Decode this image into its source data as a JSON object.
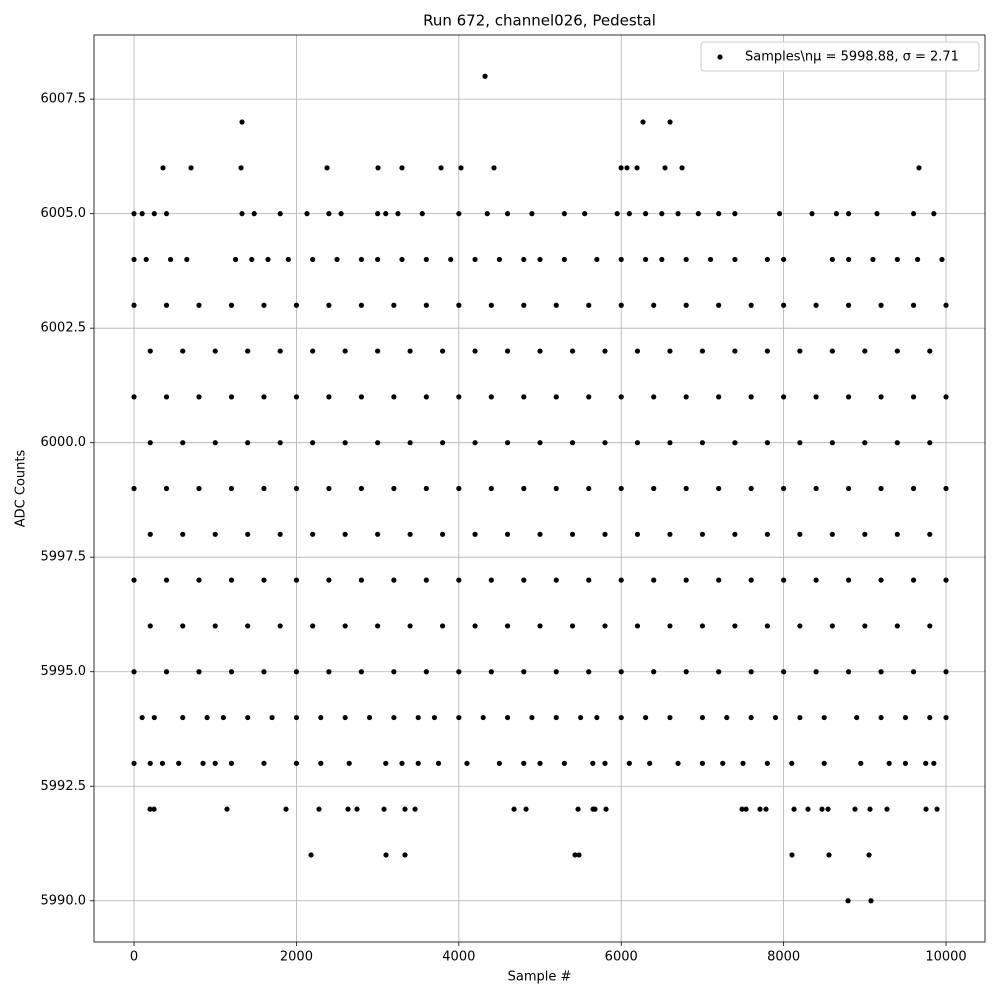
{
  "chart_data": {
    "type": "scatter",
    "title": "Run 672, channel026, Pedestal",
    "xlabel": "Sample #",
    "ylabel": "ADC Counts",
    "xlim": [
      -493,
      10480
    ],
    "ylim": [
      5989.1,
      6008.9
    ],
    "xticks": [
      0,
      2000,
      4000,
      6000,
      8000,
      10000
    ],
    "yticks": [
      {
        "value": 5990,
        "label": "5990.0"
      },
      5992.5,
      {
        "value": 5995,
        "label": "5995.0"
      },
      5997.5,
      {
        "value": 6000,
        "label": "6000.0"
      },
      6002.5,
      {
        "value": 6005,
        "label": "6005.0"
      },
      6007.5
    ],
    "grid": true,
    "legend": "upper right",
    "series": [
      {
        "name": "Samples\\nμ = 5998.88, σ = 2.71",
        "color": "#000000",
        "x": [
          4323,
          1330,
          6268,
          6601,
          357,
          702,
          1318,
          2377,
          3005,
          3300,
          3781,
          4027,
          4433,
          5998,
          6071,
          6195,
          6539,
          6749,
          9667,
          0,
          100,
          250,
          400,
          1330,
          1480,
          1800,
          2130,
          2400,
          2550,
          3000,
          3100,
          3250,
          3550,
          4000,
          4350,
          4600,
          4900,
          5300,
          5550,
          5950,
          6100,
          6300,
          6500,
          6700,
          6950,
          7200,
          7400,
          7950,
          8350,
          8650,
          8800,
          9150,
          9600,
          9850,
          0,
          150,
          450,
          650,
          1250,
          1450,
          1650,
          1900,
          2200,
          2500,
          2800,
          3000,
          3300,
          3600,
          3900,
          4200,
          4500,
          4800,
          5000,
          5300,
          5700,
          6000,
          6300,
          6500,
          6800,
          7100,
          7400,
          7800,
          8000,
          8600,
          8800,
          9100,
          9400,
          9650,
          9950,
          0,
          400,
          800,
          1200,
          1600,
          2000,
          2400,
          2800,
          3200,
          3600,
          4000,
          4400,
          4800,
          5200,
          5600,
          6000,
          6400,
          6800,
          7200,
          7600,
          8000,
          8400,
          8800,
          9200,
          9600,
          10000,
          200,
          600,
          1000,
          1400,
          1800,
          2200,
          2600,
          3000,
          3400,
          3800,
          4200,
          4600,
          5000,
          5400,
          5800,
          6200,
          6600,
          7000,
          7400,
          7800,
          8200,
          8600,
          9000,
          9400,
          9800,
          0,
          400,
          800,
          1200,
          1600,
          2000,
          2400,
          2800,
          3200,
          3600,
          4000,
          4400,
          4800,
          5200,
          5600,
          6000,
          6400,
          6800,
          7200,
          7600,
          8000,
          8400,
          8800,
          9200,
          9600,
          10000,
          200,
          600,
          1000,
          1400,
          1800,
          2200,
          2600,
          3000,
          3400,
          3800,
          4200,
          4600,
          5000,
          5400,
          5800,
          6200,
          6600,
          7000,
          7400,
          7800,
          8200,
          8600,
          9000,
          9400,
          9800,
          0,
          400,
          800,
          1200,
          1600,
          2000,
          2400,
          2800,
          3200,
          3600,
          4000,
          4400,
          4800,
          5200,
          5600,
          6000,
          6400,
          6800,
          7200,
          7600,
          8000,
          8400,
          8800,
          9200,
          9600,
          10000,
          200,
          600,
          1000,
          1400,
          1800,
          2200,
          2600,
          3000,
          3400,
          3800,
          4200,
          4600,
          5000,
          5400,
          5800,
          6200,
          6600,
          7000,
          7400,
          7800,
          8200,
          8600,
          9000,
          9400,
          9800,
          0,
          400,
          800,
          1200,
          1600,
          2000,
          2400,
          2800,
          3200,
          3600,
          4000,
          4400,
          4800,
          5200,
          5600,
          6000,
          6400,
          6800,
          7200,
          7600,
          8000,
          8400,
          8800,
          9200,
          9600,
          10000,
          200,
          600,
          1000,
          1400,
          1800,
          2200,
          2600,
          3000,
          3400,
          3800,
          4200,
          4600,
          5000,
          5400,
          5800,
          6200,
          6600,
          7000,
          7400,
          7800,
          8200,
          8600,
          9000,
          9400,
          9800,
          0,
          400,
          800,
          1200,
          1600,
          2000,
          2400,
          2800,
          3200,
          3600,
          4000,
          4400,
          4800,
          5200,
          5600,
          6000,
          6400,
          6800,
          7200,
          7600,
          8000,
          8400,
          8800,
          9200,
          9600,
          10000,
          100,
          250,
          600,
          900,
          1100,
          1400,
          1700,
          2000,
          2300,
          2600,
          2900,
          3200,
          3500,
          3700,
          4000,
          4300,
          4600,
          4900,
          5200,
          5500,
          5700,
          6000,
          6300,
          6600,
          7000,
          7300,
          7600,
          7900,
          8200,
          8500,
          8900,
          9200,
          9500,
          9800,
          10000,
          0,
          200,
          350,
          550,
          850,
          1000,
          1200,
          1600,
          2000,
          2300,
          2650,
          3100,
          3300,
          3500,
          3750,
          4100,
          4500,
          4800,
          5000,
          5300,
          5650,
          5800,
          6100,
          6350,
          6700,
          7000,
          7250,
          7500,
          7800,
          8100,
          8500,
          8950,
          9300,
          9500,
          9750,
          9850,
          197,
          246,
          1145,
          1872,
          2278,
          2635,
          2746,
          3079,
          3337,
          3461,
          4680,
          4828,
          5468,
          5653,
          5677,
          5813,
          7488,
          7537,
          7709,
          7783,
          8128,
          8300,
          8473,
          8547,
          8879,
          9064,
          9273,
          9754,
          9889,
          2180,
          3103,
          3337,
          5431,
          5480,
          8103,
          8559,
          9052,
          8793,
          9076
        ],
        "values": [
          6008,
          6007,
          6007,
          6007,
          6006,
          6006,
          6006,
          6006,
          6006,
          6006,
          6006,
          6006,
          6006,
          6006,
          6006,
          6006,
          6006,
          6006,
          6006,
          6005,
          6005,
          6005,
          6005,
          6005,
          6005,
          6005,
          6005,
          6005,
          6005,
          6005,
          6005,
          6005,
          6005,
          6005,
          6005,
          6005,
          6005,
          6005,
          6005,
          6005,
          6005,
          6005,
          6005,
          6005,
          6005,
          6005,
          6005,
          6005,
          6005,
          6005,
          6005,
          6005,
          6005,
          6005,
          6004,
          6004,
          6004,
          6004,
          6004,
          6004,
          6004,
          6004,
          6004,
          6004,
          6004,
          6004,
          6004,
          6004,
          6004,
          6004,
          6004,
          6004,
          6004,
          6004,
          6004,
          6004,
          6004,
          6004,
          6004,
          6004,
          6004,
          6004,
          6004,
          6004,
          6004,
          6004,
          6004,
          6004,
          6004,
          6003,
          6003,
          6003,
          6003,
          6003,
          6003,
          6003,
          6003,
          6003,
          6003,
          6003,
          6003,
          6003,
          6003,
          6003,
          6003,
          6003,
          6003,
          6003,
          6003,
          6003,
          6003,
          6003,
          6003,
          6003,
          6003,
          6002,
          6002,
          6002,
          6002,
          6002,
          6002,
          6002,
          6002,
          6002,
          6002,
          6002,
          6002,
          6002,
          6002,
          6002,
          6002,
          6002,
          6002,
          6002,
          6002,
          6002,
          6002,
          6002,
          6002,
          6002,
          6001,
          6001,
          6001,
          6001,
          6001,
          6001,
          6001,
          6001,
          6001,
          6001,
          6001,
          6001,
          6001,
          6001,
          6001,
          6001,
          6001,
          6001,
          6001,
          6001,
          6001,
          6001,
          6001,
          6001,
          6001,
          6001,
          6000,
          6000,
          6000,
          6000,
          6000,
          6000,
          6000,
          6000,
          6000,
          6000,
          6000,
          6000,
          6000,
          6000,
          6000,
          6000,
          6000,
          6000,
          6000,
          6000,
          6000,
          6000,
          6000,
          6000,
          6000,
          5999,
          5999,
          5999,
          5999,
          5999,
          5999,
          5999,
          5999,
          5999,
          5999,
          5999,
          5999,
          5999,
          5999,
          5999,
          5999,
          5999,
          5999,
          5999,
          5999,
          5999,
          5999,
          5999,
          5999,
          5999,
          5999,
          5998,
          5998,
          5998,
          5998,
          5998,
          5998,
          5998,
          5998,
          5998,
          5998,
          5998,
          5998,
          5998,
          5998,
          5998,
          5998,
          5998,
          5998,
          5998,
          5998,
          5998,
          5998,
          5998,
          5998,
          5998,
          5997,
          5997,
          5997,
          5997,
          5997,
          5997,
          5997,
          5997,
          5997,
          5997,
          5997,
          5997,
          5997,
          5997,
          5997,
          5997,
          5997,
          5997,
          5997,
          5997,
          5997,
          5997,
          5997,
          5997,
          5997,
          5997,
          5996,
          5996,
          5996,
          5996,
          5996,
          5996,
          5996,
          5996,
          5996,
          5996,
          5996,
          5996,
          5996,
          5996,
          5996,
          5996,
          5996,
          5996,
          5996,
          5996,
          5996,
          5996,
          5996,
          5996,
          5996,
          5995,
          5995,
          5995,
          5995,
          5995,
          5995,
          5995,
          5995,
          5995,
          5995,
          5995,
          5995,
          5995,
          5995,
          5995,
          5995,
          5995,
          5995,
          5995,
          5995,
          5995,
          5995,
          5995,
          5995,
          5995,
          5995,
          5994,
          5994,
          5994,
          5994,
          5994,
          5994,
          5994,
          5994,
          5994,
          5994,
          5994,
          5994,
          5994,
          5994,
          5994,
          5994,
          5994,
          5994,
          5994,
          5994,
          5994,
          5994,
          5994,
          5994,
          5994,
          5994,
          5994,
          5994,
          5994,
          5994,
          5994,
          5994,
          5994,
          5994,
          5994,
          5993,
          5993,
          5993,
          5993,
          5993,
          5993,
          5993,
          5993,
          5993,
          5993,
          5993,
          5993,
          5993,
          5993,
          5993,
          5993,
          5993,
          5993,
          5993,
          5993,
          5993,
          5993,
          5993,
          5993,
          5993,
          5993,
          5993,
          5993,
          5993,
          5993,
          5993,
          5993,
          5993,
          5993,
          5993,
          5993,
          5992,
          5992,
          5992,
          5992,
          5992,
          5992,
          5992,
          5992,
          5992,
          5992,
          5992,
          5992,
          5992,
          5992,
          5992,
          5992,
          5992,
          5992,
          5992,
          5992,
          5992,
          5992,
          5992,
          5992,
          5992,
          5992,
          5992,
          5992,
          5992,
          5991,
          5991,
          5991,
          5991,
          5991,
          5991,
          5991,
          5991,
          5990,
          5990
        ]
      }
    ]
  }
}
